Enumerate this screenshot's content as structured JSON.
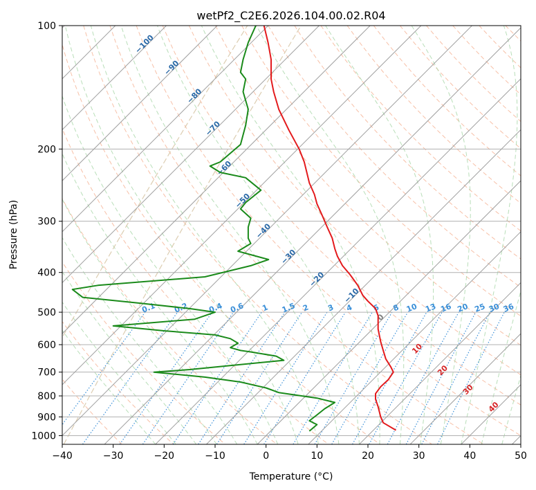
{
  "chart_data": {
    "type": "line",
    "title": "wetPf2_C2E6.2026.104.00.02.R04",
    "xlabel": "Temperature (°C)",
    "ylabel": "Pressure (hPa)",
    "xlim": [
      -40,
      50
    ],
    "ylim": [
      1050,
      100
    ],
    "x_ticks": [
      -40,
      -30,
      -20,
      -10,
      0,
      10,
      20,
      30,
      40,
      50
    ],
    "x_tick_labels": [
      "−40",
      "−30",
      "−20",
      "−10",
      "0",
      "10",
      "20",
      "30",
      "40",
      "50"
    ],
    "y_ticks": [
      100,
      200,
      300,
      400,
      500,
      600,
      700,
      800,
      900,
      1000
    ],
    "y_tick_labels": [
      "100",
      "200",
      "300",
      "400",
      "500",
      "600",
      "700",
      "800",
      "900",
      "1000"
    ],
    "y_scale": "log",
    "colors": {
      "temperature": "#e31a1c",
      "dewpoint": "#1a8a1a",
      "isotherm": "#a0a0a0",
      "grid": "#b0b0b0",
      "dry_adiabat": "#f4a582",
      "moist_adiabat": "#a6d6a6",
      "mixing_ratio": "#3a8fd8",
      "hgz": "#d8c8a8",
      "iso_label": "#2b6aa8",
      "moist_label": "#d62728",
      "zero_label": "#808080"
    },
    "series": [
      {
        "name": "Temperature",
        "points": [
          [
            -0.4,
            100
          ],
          [
            0.4,
            110
          ],
          [
            1.0,
            121
          ],
          [
            1.0,
            135
          ],
          [
            1.5,
            145
          ],
          [
            2.5,
            160
          ],
          [
            4.5,
            180
          ],
          [
            6.5,
            200
          ],
          [
            7.5,
            215
          ],
          [
            8.0,
            228
          ],
          [
            8.5,
            242
          ],
          [
            9.5,
            258
          ],
          [
            10.0,
            272
          ],
          [
            11.0,
            290
          ],
          [
            12.0,
            310
          ],
          [
            13.0,
            330
          ],
          [
            13.5,
            350
          ],
          [
            14.0,
            365
          ],
          [
            15.0,
            385
          ],
          [
            16.5,
            405
          ],
          [
            18.0,
            430
          ],
          [
            19.0,
            455
          ],
          [
            20.0,
            470
          ],
          [
            21.5,
            490
          ],
          [
            22.0,
            510
          ],
          [
            22.0,
            550
          ],
          [
            22.5,
            590
          ],
          [
            23.0,
            620
          ],
          [
            23.5,
            650
          ],
          [
            24.5,
            680
          ],
          [
            25.0,
            700
          ],
          [
            24.0,
            730
          ],
          [
            22.5,
            760
          ],
          [
            21.5,
            790
          ],
          [
            21.5,
            815
          ],
          [
            22.0,
            850
          ],
          [
            22.5,
            900
          ],
          [
            23.0,
            930
          ],
          [
            25.5,
            970
          ]
        ]
      },
      {
        "name": "Dewpoint",
        "points": [
          [
            -2.0,
            100
          ],
          [
            -3.5,
            110
          ],
          [
            -4.5,
            121
          ],
          [
            -5.0,
            130
          ],
          [
            -4.0,
            135
          ],
          [
            -4.5,
            145
          ],
          [
            -3.5,
            160
          ],
          [
            -4.0,
            175
          ],
          [
            -5.0,
            195
          ],
          [
            -9.0,
            215
          ],
          [
            -11.0,
            220
          ],
          [
            -9.0,
            228
          ],
          [
            -4.0,
            235
          ],
          [
            -1.0,
            252
          ],
          [
            -4.0,
            270
          ],
          [
            -5.0,
            280
          ],
          [
            -3.0,
            295
          ],
          [
            -3.5,
            310
          ],
          [
            -3.5,
            330
          ],
          [
            -3.0,
            340
          ],
          [
            -5.5,
            355
          ],
          [
            0.5,
            372
          ],
          [
            -3.0,
            385
          ],
          [
            -12.0,
            410
          ],
          [
            -33.0,
            430
          ],
          [
            -38.0,
            440
          ],
          [
            -36.0,
            460
          ],
          [
            -30.0,
            468
          ],
          [
            -25.0,
            475
          ],
          [
            -15.0,
            490
          ],
          [
            -10.0,
            500
          ],
          [
            -14.0,
            520
          ],
          [
            -30.0,
            540
          ],
          [
            -20.0,
            555
          ],
          [
            -10.0,
            568
          ],
          [
            -7.0,
            580
          ],
          [
            -5.5,
            595
          ],
          [
            -7.0,
            610
          ],
          [
            -5.0,
            620
          ],
          [
            -3.0,
            625
          ],
          [
            2.0,
            640
          ],
          [
            3.5,
            655
          ],
          [
            -15.0,
            690
          ],
          [
            -22.0,
            700
          ],
          [
            -12.0,
            720
          ],
          [
            -5.0,
            740
          ],
          [
            0.0,
            765
          ],
          [
            2.5,
            785
          ],
          [
            10.0,
            810
          ],
          [
            13.5,
            830
          ],
          [
            11.5,
            860
          ],
          [
            10.0,
            890
          ],
          [
            8.5,
            920
          ],
          [
            10.0,
            940
          ],
          [
            8.5,
            975
          ]
        ]
      }
    ],
    "isotherm_labels": [
      "−100",
      "−90",
      "−80",
      "−70",
      "−60",
      "−50",
      "−40",
      "−30",
      "−20",
      "−10",
      "0"
    ],
    "mixing_ratio_labels": [
      "0.1",
      "0.2",
      "0.4",
      "0.6",
      "1",
      "1.5",
      "2",
      "3",
      "4",
      "6",
      "8",
      "10",
      "13",
      "16",
      "20",
      "25",
      "30",
      "36"
    ],
    "moist_adiabat_labels": [
      "10",
      "20",
      "30",
      "40"
    ]
  }
}
